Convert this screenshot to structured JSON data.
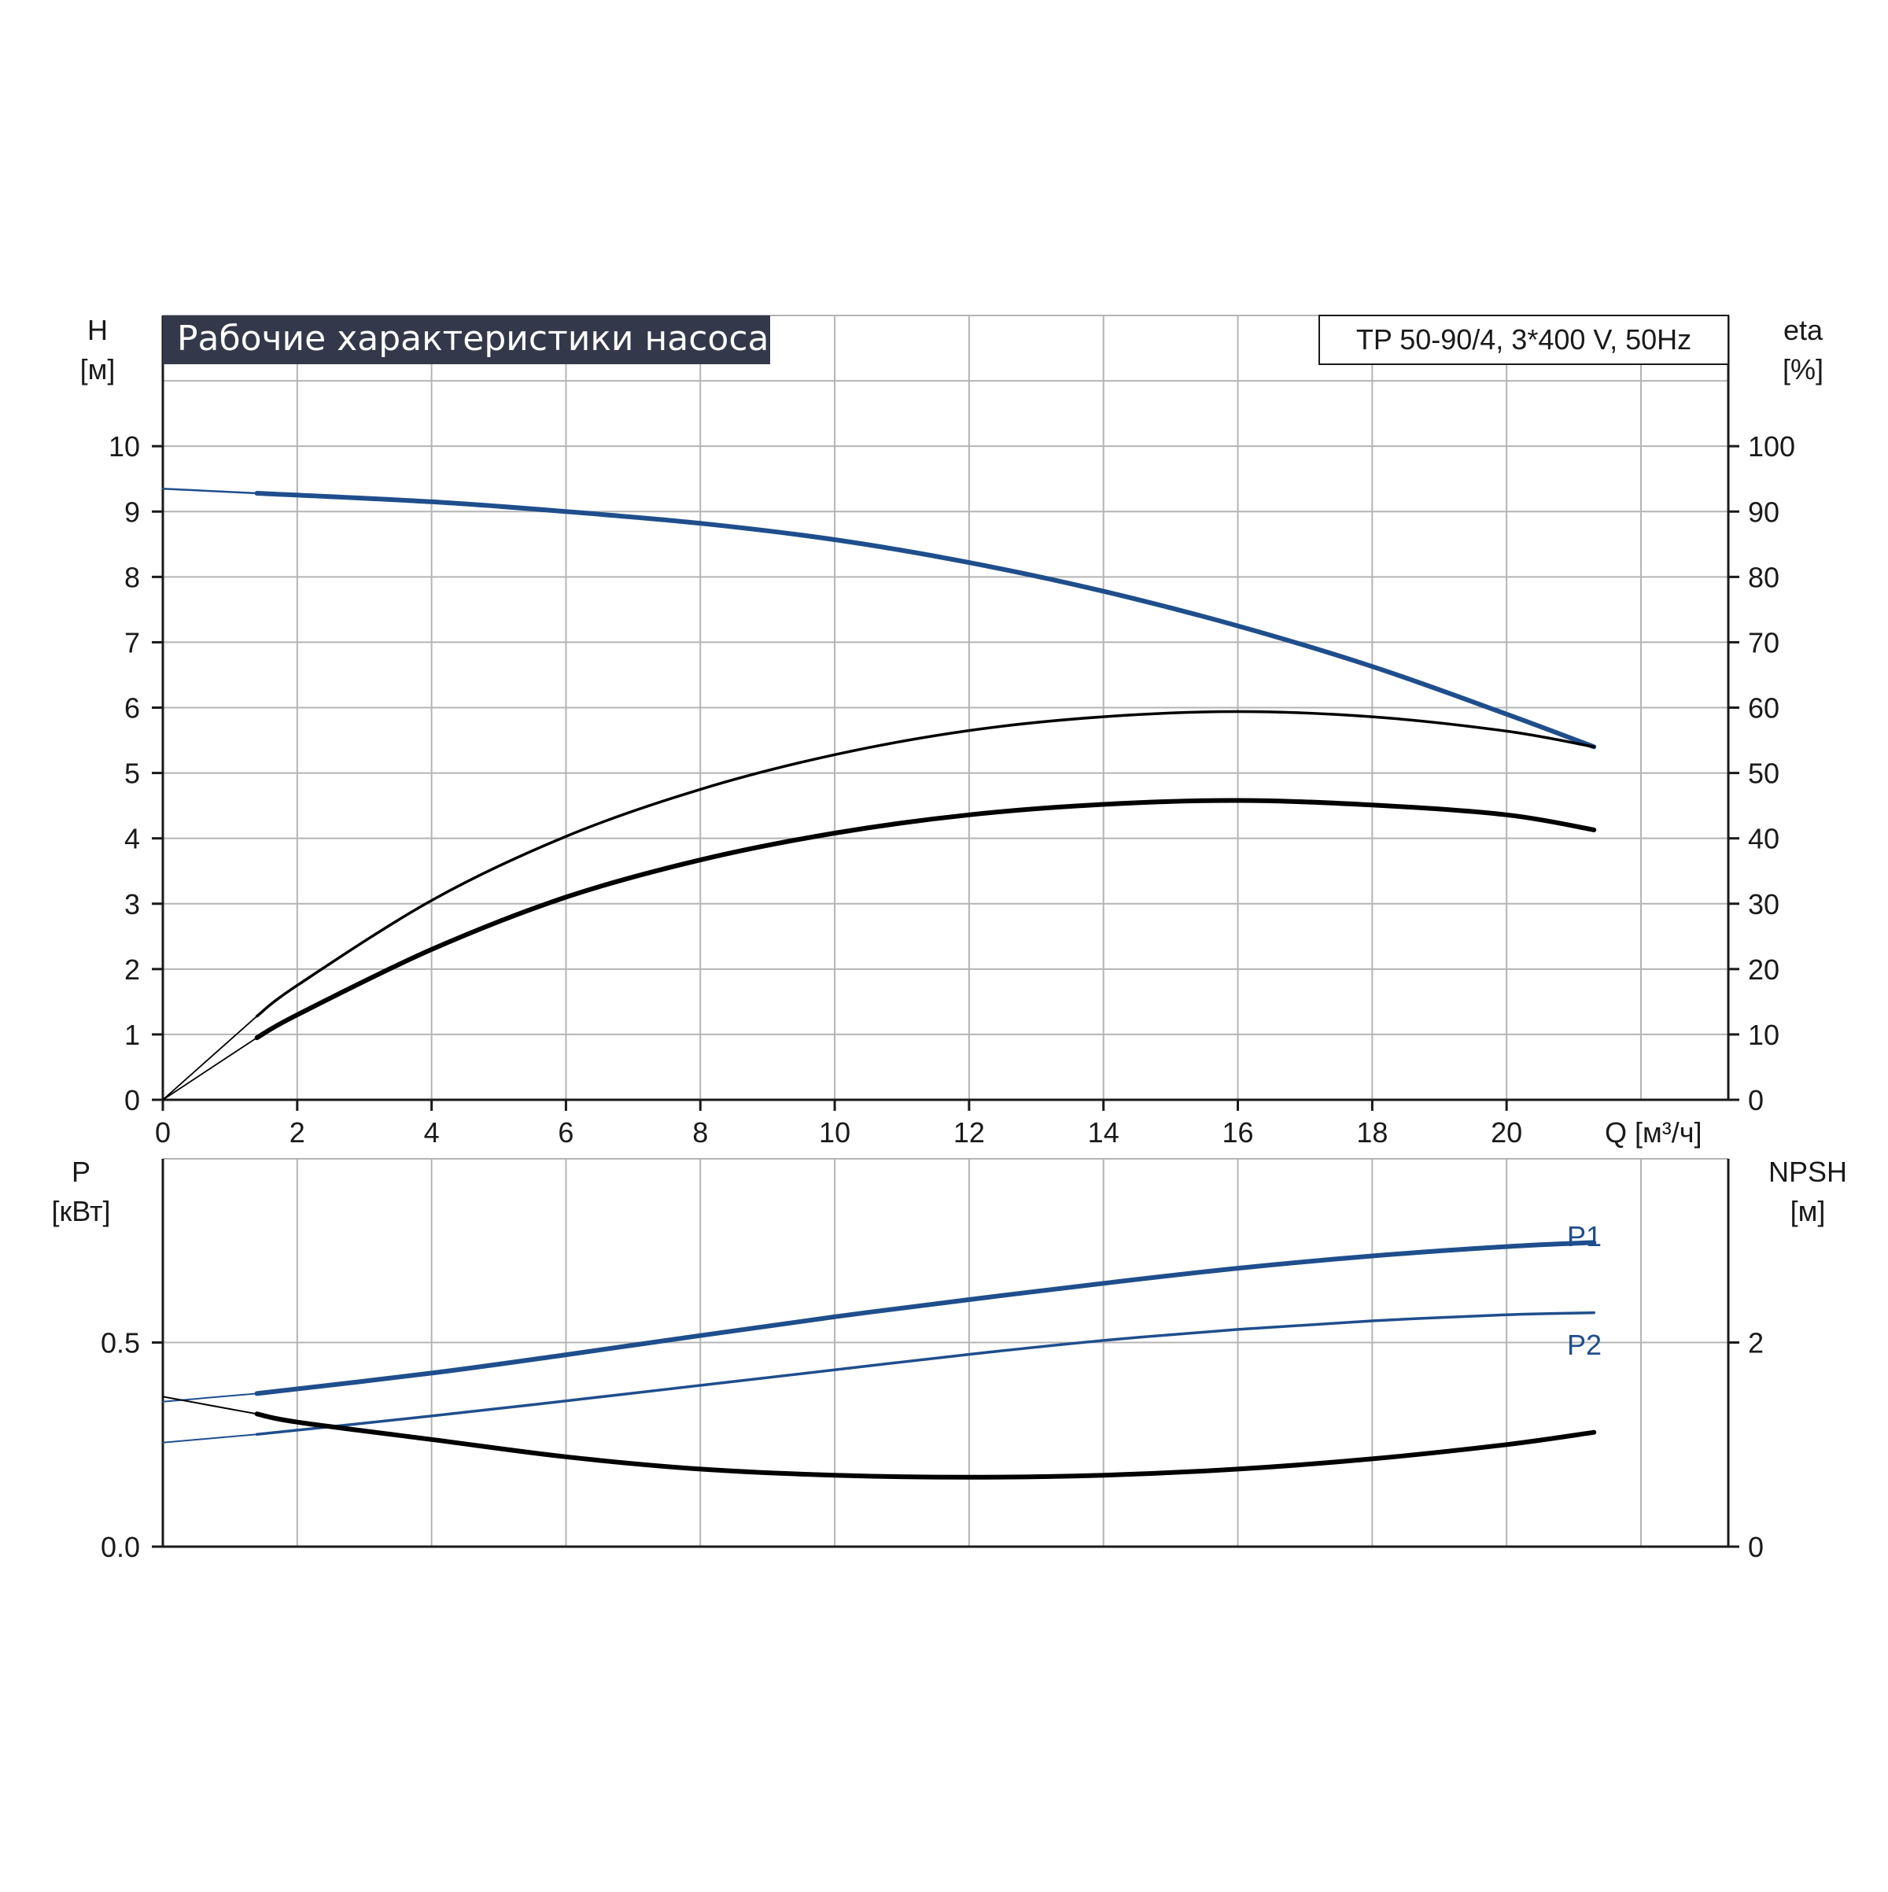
{
  "title": "Рабочие характеристики насоса",
  "model_label": "TP 50-90/4, 3*400 V, 50Hz",
  "colors": {
    "blue": "#1f4e8c",
    "black": "#000000",
    "grid": "#b4b4b4",
    "title_bg": "#33394a"
  },
  "chart_data": [
    {
      "type": "line",
      "name": "upper",
      "x_label": "Q [м³/ч]",
      "xlim": [
        0,
        23.3
      ],
      "x_ticks": [
        "0",
        "2",
        "4",
        "6",
        "8",
        "10",
        "12",
        "14",
        "16",
        "18",
        "20"
      ],
      "y_left_label": [
        "H",
        "[м]"
      ],
      "y_left_lim": [
        0,
        12
      ],
      "y_left_ticks": [
        "0",
        "1",
        "2",
        "3",
        "4",
        "5",
        "6",
        "7",
        "8",
        "9",
        "10"
      ],
      "y_right_label": [
        "eta",
        "[%]"
      ],
      "y_right_ticks": [
        "0",
        "10",
        "20",
        "30",
        "40",
        "50",
        "60",
        "70",
        "80",
        "90",
        "100"
      ],
      "grid": true,
      "series": [
        {
          "role": "head",
          "unit": "m",
          "color": "#1f4e8c",
          "points": [
            [
              0,
              9.35
            ],
            [
              1.4,
              9.28
            ],
            [
              4,
              9.15
            ],
            [
              6,
              9.0
            ],
            [
              8,
              8.82
            ],
            [
              10,
              8.57
            ],
            [
              12,
              8.22
            ],
            [
              14,
              7.78
            ],
            [
              16,
              7.25
            ],
            [
              18,
              6.63
            ],
            [
              20,
              5.9
            ],
            [
              21.3,
              5.4
            ]
          ]
        },
        {
          "role": "efficiency",
          "unit": "%",
          "color": "#000000",
          "points": [
            [
              0,
              0
            ],
            [
              1.4,
              12.8
            ],
            [
              2,
              17.5
            ],
            [
              4,
              30.5
            ],
            [
              6,
              40.3
            ],
            [
              8,
              47.5
            ],
            [
              10,
              52.8
            ],
            [
              12,
              56.5
            ],
            [
              14,
              58.6
            ],
            [
              16,
              59.4
            ],
            [
              18,
              58.6
            ],
            [
              20,
              56.4
            ],
            [
              21.3,
              54
            ]
          ]
        },
        {
          "role": "efficiency-curve-2",
          "unit": "%",
          "color": "#000000",
          "points": [
            [
              0,
              0
            ],
            [
              1.4,
              9.5
            ],
            [
              2,
              13
            ],
            [
              4,
              23
            ],
            [
              6,
              31
            ],
            [
              8,
              36.7
            ],
            [
              10,
              40.8
            ],
            [
              12,
              43.6
            ],
            [
              14,
              45.2
            ],
            [
              16,
              45.8
            ],
            [
              18,
              45.1
            ],
            [
              20,
              43.6
            ],
            [
              21.3,
              41.3
            ]
          ]
        }
      ]
    },
    {
      "type": "line",
      "name": "lower",
      "x_label": "",
      "xlim": [
        0,
        23.3
      ],
      "y_left_label": [
        "P",
        "[кВт]"
      ],
      "y_left_lim": [
        0,
        0.95
      ],
      "y_left_ticks": [
        {
          "v": 0,
          "label": "0.0"
        },
        {
          "v": 0.5,
          "label": "0.5"
        }
      ],
      "y_right_label": [
        "NPSH",
        "[м]"
      ],
      "y_right_lim": [
        0,
        3.8
      ],
      "y_right_ticks": [
        {
          "v": 0,
          "label": "0"
        },
        {
          "v": 2,
          "label": "2"
        }
      ],
      "grid": true,
      "series": [
        {
          "name": "P1",
          "unit": "kW",
          "color": "#1f4e8c",
          "points": [
            [
              0,
              0.355
            ],
            [
              1.4,
              0.375
            ],
            [
              4,
              0.425
            ],
            [
              6,
              0.47
            ],
            [
              8,
              0.517
            ],
            [
              10,
              0.563
            ],
            [
              12,
              0.605
            ],
            [
              14,
              0.645
            ],
            [
              16,
              0.682
            ],
            [
              18,
              0.712
            ],
            [
              20,
              0.735
            ],
            [
              21.3,
              0.745
            ]
          ]
        },
        {
          "name": "P2",
          "unit": "kW",
          "color": "#1f4e8c",
          "points": [
            [
              0,
              0.255
            ],
            [
              1.4,
              0.275
            ],
            [
              4,
              0.32
            ],
            [
              6,
              0.357
            ],
            [
              8,
              0.395
            ],
            [
              10,
              0.433
            ],
            [
              12,
              0.471
            ],
            [
              14,
              0.505
            ],
            [
              16,
              0.532
            ],
            [
              18,
              0.553
            ],
            [
              20,
              0.568
            ],
            [
              21.3,
              0.573
            ]
          ]
        },
        {
          "role": "npsh",
          "unit": "m",
          "color": "#000000",
          "points": [
            [
              0,
              1.47
            ],
            [
              1.4,
              1.3
            ],
            [
              2,
              1.22
            ],
            [
              4,
              1.05
            ],
            [
              6,
              0.88
            ],
            [
              8,
              0.76
            ],
            [
              10,
              0.7
            ],
            [
              12,
              0.68
            ],
            [
              14,
              0.7
            ],
            [
              16,
              0.76
            ],
            [
              18,
              0.86
            ],
            [
              20,
              1.0
            ],
            [
              21.3,
              1.12
            ]
          ]
        }
      ]
    }
  ]
}
